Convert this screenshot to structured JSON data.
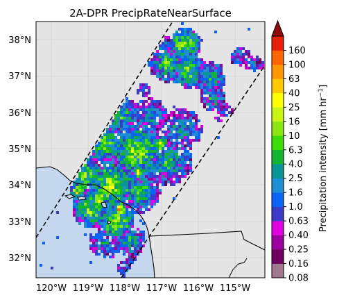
{
  "map": {
    "title": "2A-DPR PrecipRateNearSurface",
    "lon_ticks": [
      "120°W",
      "119°W",
      "118°W",
      "117°W",
      "116°W",
      "115°W"
    ],
    "lat_ticks": [
      "38°N",
      "37°N",
      "36°N",
      "35°N",
      "34°N",
      "33°N",
      "32°N"
    ],
    "extent": {
      "lon": [
        -120.5,
        -114.3
      ],
      "lat": [
        31.45,
        38.5
      ]
    },
    "colors": {
      "background": "#e5e5e5",
      "ocean": "#c5d7ee",
      "coast": "#000000",
      "swath_edge": "#000000"
    }
  },
  "colorbar": {
    "label": "Precipitation intensity [mm hr",
    "label_exp": "−1",
    "label_close": "]",
    "ticks": [
      "0.08",
      "0.16",
      "0.25",
      "0.40",
      "0.63",
      "1.0",
      "1.6",
      "2.5",
      "4.0",
      "6.3",
      "10",
      "16",
      "25",
      "40",
      "63",
      "100",
      "160"
    ],
    "colors": [
      "#a07890",
      "#6e0060",
      "#9a00a0",
      "#de00de",
      "#3c3cc8",
      "#0a64f5",
      "#1e8fd2",
      "#0a9696",
      "#14b432",
      "#3cdc0a",
      "#8ce614",
      "#c8f514",
      "#ffff00",
      "#ffc800",
      "#ff9600",
      "#ff6400",
      "#e61e0a"
    ],
    "extend_color": "#8c0a0a"
  }
}
